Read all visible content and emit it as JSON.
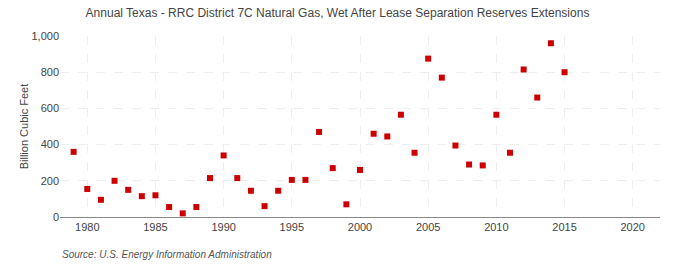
{
  "chart_data": {
    "type": "scatter",
    "title": "Annual Texas - RRC District 7C Natural Gas, Wet After Lease Separation Reserves Extensions",
    "ylabel": "Billion Cubic Feet",
    "annotations": [
      "Source: U.S. Energy Information Administration"
    ],
    "x": [
      1979,
      1980,
      1981,
      1982,
      1983,
      1984,
      1985,
      1986,
      1987,
      1988,
      1989,
      1990,
      1991,
      1992,
      1993,
      1994,
      1995,
      1996,
      1997,
      1998,
      1999,
      2000,
      2001,
      2002,
      2003,
      2004,
      2005,
      2006,
      2007,
      2008,
      2009,
      2010,
      2011,
      2012,
      2013,
      2014,
      2015
    ],
    "values": [
      360,
      155,
      95,
      200,
      150,
      115,
      120,
      55,
      20,
      55,
      215,
      340,
      215,
      145,
      60,
      145,
      205,
      205,
      470,
      270,
      70,
      260,
      460,
      445,
      565,
      355,
      875,
      770,
      395,
      290,
      285,
      565,
      355,
      815,
      660,
      960,
      800
    ],
    "color": "#cc0000",
    "marker": "square",
    "xlim": [
      1978,
      2022
    ],
    "xticks": [
      1980,
      1985,
      1990,
      1995,
      2000,
      2005,
      2010,
      2015,
      2020
    ],
    "ylim": [
      0,
      1000
    ],
    "yticks": [
      0,
      200,
      400,
      600,
      800,
      {
        "value": 1000,
        "label": "1,000"
      }
    ],
    "grid": true
  }
}
